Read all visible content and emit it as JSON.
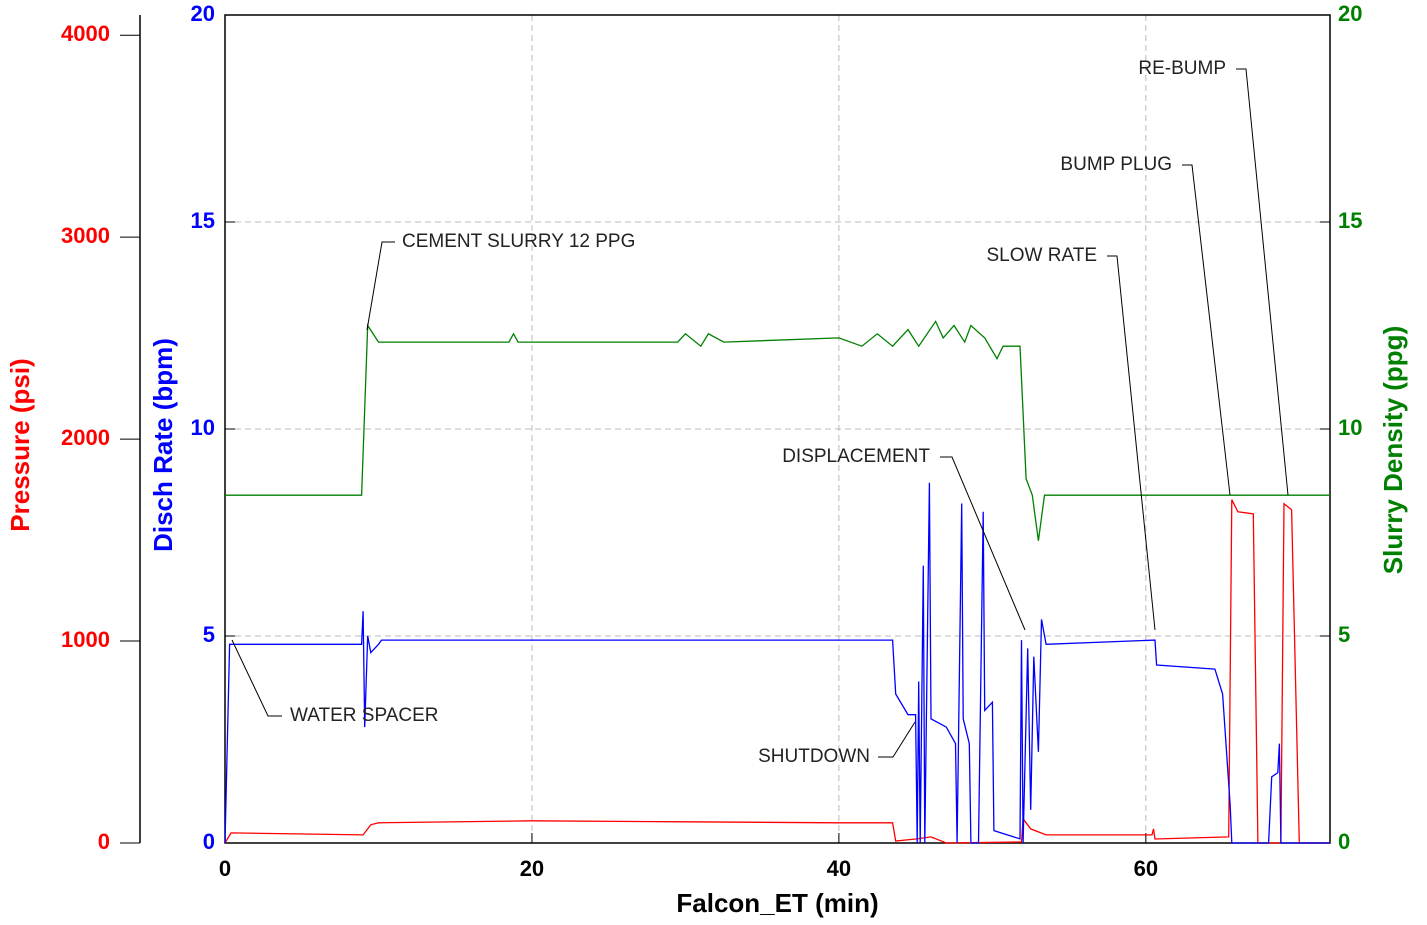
{
  "chart_data": {
    "type": "line",
    "xlabel": "Falcon_ET (min)",
    "ylabel": "Disch Rate (bpm)",
    "y2label": "Slurry Density (ppg)",
    "y3label": "Pressure (psi)",
    "xlim": [
      0,
      72
    ],
    "xticks": [
      0,
      20,
      40,
      60
    ],
    "ylim": [
      0,
      20
    ],
    "yticks": [
      0,
      5,
      10,
      15,
      20
    ],
    "y2lim": [
      0,
      20
    ],
    "y2ticks": [
      0,
      5,
      10,
      15,
      20
    ],
    "y3lim": [
      0,
      4100
    ],
    "y3ticks": [
      0,
      1000,
      2000,
      3000,
      4000
    ],
    "grid": true,
    "colors": {
      "y": "#0000ff",
      "y2": "#008000",
      "y3": "#ff0000"
    },
    "series": [
      {
        "name": "Pressure",
        "axis": "y3",
        "color": "#ff0000",
        "x": [
          0,
          0.4,
          9.0,
          9.5,
          10.0,
          20,
          30,
          40,
          43.5,
          43.7,
          45,
          46,
          47,
          51.9,
          52.0,
          52.5,
          53.5,
          60.4,
          60.5,
          60.6,
          65.4,
          65.6,
          66,
          67,
          67.3,
          68.8,
          69.0,
          69.5,
          70.0,
          72
        ],
        "values": [
          0,
          50,
          40,
          90,
          100,
          110,
          105,
          100,
          100,
          10,
          20,
          30,
          0,
          5,
          120,
          70,
          40,
          40,
          70,
          20,
          30,
          1700,
          1640,
          1630,
          0,
          0,
          1680,
          1650,
          0,
          0
        ]
      },
      {
        "name": "Disch Rate",
        "axis": "y",
        "color": "#0000ff",
        "x": [
          0,
          0.3,
          0.5,
          8.9,
          9.0,
          9.1,
          9.3,
          9.5,
          10.0,
          10.2,
          43.5,
          43.7,
          44.5,
          45.0,
          45.1,
          45.2,
          45.3,
          45.5,
          45.6,
          45.9,
          46.0,
          47.0,
          47.6,
          47.7,
          48.0,
          48.1,
          48.5,
          48.6,
          49.1,
          49.4,
          49.5,
          50.0,
          50.1,
          51.8,
          51.9,
          52.0,
          52.3,
          52.5,
          52.7,
          53.0,
          53.2,
          53.5,
          60.6,
          60.7,
          64.5,
          65.0,
          65.5,
          65.6,
          68.0,
          68.2,
          68.6,
          68.7,
          68.8,
          72
        ],
        "values": [
          0,
          4.8,
          4.8,
          4.8,
          5.6,
          2.8,
          5.0,
          4.6,
          4.8,
          4.9,
          4.9,
          3.6,
          3.1,
          3.1,
          0,
          3.9,
          0,
          6.7,
          0,
          8.7,
          3.0,
          2.8,
          2.4,
          0,
          8.2,
          3.0,
          2.4,
          0,
          0,
          8.0,
          3.2,
          3.4,
          0.3,
          0.1,
          4.9,
          0,
          4.7,
          0.8,
          4.5,
          2.2,
          5.4,
          4.8,
          4.9,
          4.3,
          4.2,
          3.6,
          0.9,
          0,
          0,
          1.6,
          1.7,
          2.4,
          0,
          0
        ]
      },
      {
        "name": "Slurry Density",
        "axis": "y2",
        "color": "#008000",
        "x": [
          0,
          8.9,
          9.3,
          10.0,
          18.5,
          18.8,
          19.1,
          29.5,
          30.0,
          31.0,
          31.5,
          32.5,
          40,
          41.5,
          42.5,
          43.5,
          44.5,
          45.2,
          46.3,
          46.8,
          47.5,
          48.2,
          48.6,
          49.5,
          50.3,
          50.7,
          51.0,
          51.8,
          52.2,
          52.6,
          53.0,
          53.4,
          72
        ],
        "values": [
          8.4,
          8.4,
          12.5,
          12.1,
          12.1,
          12.3,
          12.1,
          12.1,
          12.3,
          12.0,
          12.3,
          12.1,
          12.2,
          12.0,
          12.3,
          12.0,
          12.4,
          12.0,
          12.6,
          12.2,
          12.5,
          12.1,
          12.5,
          12.2,
          11.7,
          12.0,
          12.0,
          12.0,
          8.8,
          8.4,
          7.3,
          8.4,
          8.4
        ]
      }
    ],
    "annotations": [
      "CEMENT SLURRY 12 PPG",
      "WATER SPACER",
      "SHUTDOWN",
      "DISPLACEMENT",
      "SLOW RATE",
      "BUMP PLUG",
      "RE-BUMP"
    ]
  }
}
